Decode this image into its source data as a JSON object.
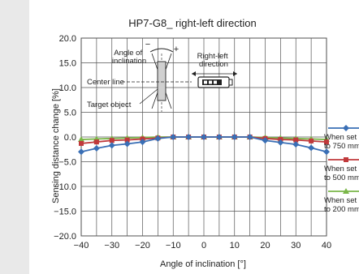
{
  "chart_data": {
    "type": "line",
    "title": "HP7-G8_ right-left direction",
    "xlabel": "Angle of inclination [°]",
    "ylabel": "Sensing distance change [%]",
    "xlim": [
      -40,
      40
    ],
    "ylim": [
      -20,
      20
    ],
    "x_ticks": [
      "−40",
      "−30",
      "−20",
      "−10",
      "0",
      "10",
      "20",
      "30",
      "40"
    ],
    "y_ticks": [
      "20.0",
      "15.0",
      "10.0",
      "5.0",
      "0.0",
      "−5.0",
      "−10.0",
      "−15.0",
      "−20.0"
    ],
    "grid": true,
    "legend_position": "right",
    "x": [
      -40,
      -35,
      -30,
      -25,
      -20,
      -15,
      -10,
      -5,
      0,
      5,
      10,
      15,
      20,
      25,
      30,
      35,
      40
    ],
    "series": [
      {
        "name": "When set to 750 mm",
        "color": "#3a6fb5",
        "marker": "diamond",
        "values": [
          -3.0,
          -2.3,
          -1.7,
          -1.4,
          -1.0,
          -0.3,
          0.0,
          0.0,
          0.0,
          0.0,
          0.0,
          0.0,
          -0.7,
          -1.1,
          -1.5,
          -2.2,
          -3.0
        ]
      },
      {
        "name": "When set to 500 mm",
        "color": "#c0393b",
        "marker": "square",
        "values": [
          -1.3,
          -1.0,
          -0.7,
          -0.6,
          -0.4,
          -0.2,
          0.0,
          0.0,
          0.0,
          0.0,
          0.0,
          0.0,
          -0.3,
          -0.5,
          -0.6,
          -0.8,
          -1.0
        ]
      },
      {
        "name": "When set to 200 mm",
        "color": "#7ab648",
        "marker": "triangle",
        "values": [
          -0.5,
          -0.4,
          -0.3,
          -0.2,
          -0.1,
          0.0,
          0.0,
          0.0,
          0.0,
          0.0,
          0.0,
          0.0,
          -0.1,
          -0.2,
          -0.3,
          -0.4,
          -0.5
        ]
      }
    ],
    "legend_text": [
      {
        "line1": "When set",
        "line2": "to 750 mm"
      },
      {
        "line1": "When set",
        "line2": "to 500 mm"
      },
      {
        "line1": "When set",
        "line2": "to 200 mm"
      }
    ],
    "inset_diagram": {
      "angle_label": "Angle of inclination",
      "minus_sign": "−",
      "plus_sign": "+",
      "center_line_label": "Center line",
      "target_label": "Target object",
      "direction_label": "Right-left direction"
    }
  }
}
